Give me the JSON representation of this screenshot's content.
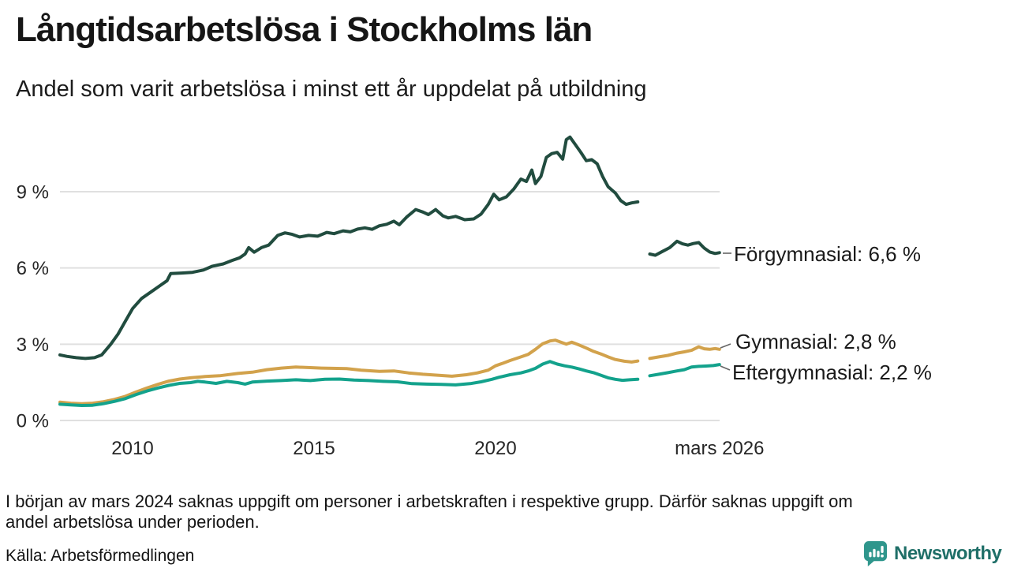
{
  "header": {
    "title": "Långtidsarbetslösa i Stockholms län",
    "subtitle": "Andel som varit arbetslösa i minst ett år uppdelat på utbildning"
  },
  "chart_data": {
    "type": "line",
    "title": "Långtidsarbetslösa i Stockholms län",
    "subtitle": "Andel som varit arbetslösa i minst ett år uppdelat på utbildning",
    "unit": "%",
    "grid": true,
    "legend_position": "end-labels-right",
    "x_axis": {
      "range": [
        2008,
        2026.25
      ],
      "ticks": [
        {
          "label": "2010",
          "year": 2010
        },
        {
          "label": "2015",
          "year": 2015
        },
        {
          "label": "2020",
          "year": 2020
        },
        {
          "label": "mars 2026",
          "year": 2026.17
        }
      ]
    },
    "y_axis": {
      "range": [
        0,
        11.5
      ],
      "ticks": [
        {
          "label": "0 %",
          "value": 0
        },
        {
          "label": "3 %",
          "value": 3
        },
        {
          "label": "6 %",
          "value": 6
        },
        {
          "label": "9 %",
          "value": 9
        }
      ]
    },
    "data_gap": {
      "from": 2023.92,
      "to": 2024.25
    },
    "series": [
      {
        "name": "Förgymnasial",
        "end_label": "Förgymnasial: 6,6 %",
        "latest_value": 6.6,
        "color": "#214c3f",
        "segments": [
          [
            [
              2008.0,
              2.58
            ],
            [
              2008.2,
              2.52
            ],
            [
              2008.45,
              2.47
            ],
            [
              2008.7,
              2.44
            ],
            [
              2008.95,
              2.47
            ],
            [
              2009.15,
              2.58
            ],
            [
              2009.4,
              3.0
            ],
            [
              2009.6,
              3.4
            ],
            [
              2009.8,
              3.9
            ],
            [
              2010.0,
              4.4
            ],
            [
              2010.25,
              4.8
            ],
            [
              2010.5,
              5.05
            ],
            [
              2010.75,
              5.3
            ],
            [
              2010.95,
              5.5
            ],
            [
              2011.05,
              5.78
            ],
            [
              2011.35,
              5.8
            ],
            [
              2011.65,
              5.83
            ],
            [
              2011.95,
              5.92
            ],
            [
              2012.2,
              6.07
            ],
            [
              2012.5,
              6.16
            ],
            [
              2012.75,
              6.3
            ],
            [
              2012.95,
              6.4
            ],
            [
              2013.1,
              6.55
            ],
            [
              2013.2,
              6.8
            ],
            [
              2013.35,
              6.62
            ],
            [
              2013.55,
              6.8
            ],
            [
              2013.75,
              6.9
            ],
            [
              2014.0,
              7.28
            ],
            [
              2014.2,
              7.38
            ],
            [
              2014.4,
              7.32
            ],
            [
              2014.6,
              7.22
            ],
            [
              2014.85,
              7.28
            ],
            [
              2015.1,
              7.25
            ],
            [
              2015.35,
              7.4
            ],
            [
              2015.55,
              7.35
            ],
            [
              2015.8,
              7.46
            ],
            [
              2016.0,
              7.42
            ],
            [
              2016.2,
              7.53
            ],
            [
              2016.4,
              7.58
            ],
            [
              2016.6,
              7.52
            ],
            [
              2016.8,
              7.66
            ],
            [
              2017.0,
              7.72
            ],
            [
              2017.2,
              7.84
            ],
            [
              2017.35,
              7.7
            ],
            [
              2017.55,
              8.0
            ],
            [
              2017.8,
              8.3
            ],
            [
              2018.0,
              8.2
            ],
            [
              2018.15,
              8.1
            ],
            [
              2018.35,
              8.3
            ],
            [
              2018.55,
              8.05
            ],
            [
              2018.7,
              7.97
            ],
            [
              2018.9,
              8.03
            ],
            [
              2019.15,
              7.9
            ],
            [
              2019.4,
              7.93
            ],
            [
              2019.6,
              8.12
            ],
            [
              2019.8,
              8.5
            ],
            [
              2019.95,
              8.9
            ],
            [
              2020.1,
              8.68
            ],
            [
              2020.3,
              8.8
            ],
            [
              2020.5,
              9.1
            ],
            [
              2020.7,
              9.5
            ],
            [
              2020.85,
              9.4
            ],
            [
              2021.0,
              9.85
            ],
            [
              2021.1,
              9.32
            ],
            [
              2021.25,
              9.6
            ],
            [
              2021.4,
              10.35
            ],
            [
              2021.55,
              10.5
            ],
            [
              2021.7,
              10.55
            ],
            [
              2021.85,
              10.28
            ],
            [
              2021.95,
              11.05
            ],
            [
              2022.05,
              11.15
            ],
            [
              2022.2,
              10.85
            ],
            [
              2022.35,
              10.55
            ],
            [
              2022.5,
              10.22
            ],
            [
              2022.65,
              10.26
            ],
            [
              2022.8,
              10.1
            ],
            [
              2022.95,
              9.6
            ],
            [
              2023.1,
              9.2
            ],
            [
              2023.3,
              8.95
            ],
            [
              2023.45,
              8.65
            ],
            [
              2023.6,
              8.5
            ],
            [
              2023.75,
              8.56
            ],
            [
              2023.92,
              8.6
            ]
          ],
          [
            [
              2024.25,
              6.55
            ],
            [
              2024.4,
              6.5
            ],
            [
              2024.6,
              6.65
            ],
            [
              2024.8,
              6.8
            ],
            [
              2025.0,
              7.05
            ],
            [
              2025.15,
              6.95
            ],
            [
              2025.3,
              6.9
            ],
            [
              2025.45,
              6.96
            ],
            [
              2025.6,
              7.0
            ],
            [
              2025.75,
              6.78
            ],
            [
              2025.9,
              6.63
            ],
            [
              2026.05,
              6.57
            ],
            [
              2026.17,
              6.6
            ]
          ]
        ]
      },
      {
        "name": "Gymnasial",
        "end_label": "Gymnasial: 2,8 %",
        "latest_value": 2.8,
        "color": "#d2a24c",
        "segments": [
          [
            [
              2008.0,
              0.72
            ],
            [
              2008.3,
              0.68
            ],
            [
              2008.6,
              0.66
            ],
            [
              2008.9,
              0.68
            ],
            [
              2009.2,
              0.74
            ],
            [
              2009.5,
              0.83
            ],
            [
              2009.8,
              0.95
            ],
            [
              2010.1,
              1.12
            ],
            [
              2010.4,
              1.28
            ],
            [
              2010.7,
              1.42
            ],
            [
              2011.0,
              1.55
            ],
            [
              2011.3,
              1.63
            ],
            [
              2011.6,
              1.68
            ],
            [
              2012.0,
              1.73
            ],
            [
              2012.4,
              1.76
            ],
            [
              2012.9,
              1.85
            ],
            [
              2013.3,
              1.9
            ],
            [
              2013.7,
              2.0
            ],
            [
              2014.1,
              2.06
            ],
            [
              2014.5,
              2.1
            ],
            [
              2014.9,
              2.08
            ],
            [
              2015.2,
              2.06
            ],
            [
              2015.5,
              2.05
            ],
            [
              2015.9,
              2.04
            ],
            [
              2016.3,
              1.98
            ],
            [
              2016.8,
              1.93
            ],
            [
              2017.2,
              1.95
            ],
            [
              2017.6,
              1.87
            ],
            [
              2018.0,
              1.82
            ],
            [
              2018.4,
              1.78
            ],
            [
              2018.8,
              1.74
            ],
            [
              2019.2,
              1.8
            ],
            [
              2019.5,
              1.87
            ],
            [
              2019.8,
              1.98
            ],
            [
              2020.0,
              2.15
            ],
            [
              2020.2,
              2.25
            ],
            [
              2020.4,
              2.36
            ],
            [
              2020.7,
              2.5
            ],
            [
              2020.9,
              2.6
            ],
            [
              2021.1,
              2.8
            ],
            [
              2021.3,
              3.02
            ],
            [
              2021.5,
              3.13
            ],
            [
              2021.65,
              3.16
            ],
            [
              2021.8,
              3.08
            ],
            [
              2021.95,
              3.0
            ],
            [
              2022.1,
              3.08
            ],
            [
              2022.3,
              2.97
            ],
            [
              2022.5,
              2.85
            ],
            [
              2022.7,
              2.72
            ],
            [
              2022.9,
              2.62
            ],
            [
              2023.1,
              2.5
            ],
            [
              2023.3,
              2.4
            ],
            [
              2023.55,
              2.33
            ],
            [
              2023.75,
              2.3
            ],
            [
              2023.92,
              2.34
            ]
          ],
          [
            [
              2024.25,
              2.44
            ],
            [
              2024.5,
              2.5
            ],
            [
              2024.75,
              2.56
            ],
            [
              2025.0,
              2.65
            ],
            [
              2025.2,
              2.7
            ],
            [
              2025.4,
              2.76
            ],
            [
              2025.6,
              2.9
            ],
            [
              2025.75,
              2.82
            ],
            [
              2025.9,
              2.8
            ],
            [
              2026.05,
              2.83
            ],
            [
              2026.17,
              2.8
            ]
          ]
        ]
      },
      {
        "name": "Eftergymnasial",
        "end_label": "Eftergymnasial: 2,2 %",
        "latest_value": 2.2,
        "color": "#13a28c",
        "segments": [
          [
            [
              2008.0,
              0.64
            ],
            [
              2008.3,
              0.61
            ],
            [
              2008.6,
              0.59
            ],
            [
              2008.9,
              0.6
            ],
            [
              2009.2,
              0.66
            ],
            [
              2009.5,
              0.75
            ],
            [
              2009.8,
              0.86
            ],
            [
              2010.1,
              1.02
            ],
            [
              2010.4,
              1.16
            ],
            [
              2010.7,
              1.28
            ],
            [
              2011.0,
              1.38
            ],
            [
              2011.3,
              1.46
            ],
            [
              2011.6,
              1.49
            ],
            [
              2011.8,
              1.54
            ],
            [
              2012.0,
              1.51
            ],
            [
              2012.3,
              1.46
            ],
            [
              2012.6,
              1.54
            ],
            [
              2012.9,
              1.49
            ],
            [
              2013.1,
              1.43
            ],
            [
              2013.3,
              1.51
            ],
            [
              2013.7,
              1.55
            ],
            [
              2014.1,
              1.57
            ],
            [
              2014.5,
              1.6
            ],
            [
              2014.9,
              1.57
            ],
            [
              2015.3,
              1.62
            ],
            [
              2015.7,
              1.63
            ],
            [
              2016.1,
              1.59
            ],
            [
              2016.5,
              1.57
            ],
            [
              2016.9,
              1.54
            ],
            [
              2017.3,
              1.52
            ],
            [
              2017.7,
              1.45
            ],
            [
              2018.1,
              1.43
            ],
            [
              2018.5,
              1.42
            ],
            [
              2018.9,
              1.4
            ],
            [
              2019.3,
              1.45
            ],
            [
              2019.6,
              1.52
            ],
            [
              2019.9,
              1.62
            ],
            [
              2020.1,
              1.7
            ],
            [
              2020.4,
              1.8
            ],
            [
              2020.7,
              1.87
            ],
            [
              2020.9,
              1.95
            ],
            [
              2021.1,
              2.05
            ],
            [
              2021.3,
              2.22
            ],
            [
              2021.5,
              2.32
            ],
            [
              2021.7,
              2.22
            ],
            [
              2021.9,
              2.15
            ],
            [
              2022.1,
              2.1
            ],
            [
              2022.3,
              2.03
            ],
            [
              2022.5,
              1.95
            ],
            [
              2022.7,
              1.88
            ],
            [
              2022.9,
              1.78
            ],
            [
              2023.1,
              1.68
            ],
            [
              2023.3,
              1.62
            ],
            [
              2023.5,
              1.58
            ],
            [
              2023.7,
              1.6
            ],
            [
              2023.92,
              1.62
            ]
          ],
          [
            [
              2024.25,
              1.76
            ],
            [
              2024.5,
              1.82
            ],
            [
              2024.75,
              1.88
            ],
            [
              2025.0,
              1.95
            ],
            [
              2025.2,
              2.0
            ],
            [
              2025.4,
              2.1
            ],
            [
              2025.6,
              2.13
            ],
            [
              2025.8,
              2.14
            ],
            [
              2026.0,
              2.16
            ],
            [
              2026.17,
              2.2
            ]
          ]
        ]
      }
    ]
  },
  "footnote": {
    "lines": [
      "I början av mars 2024 saknas uppgift om personer i arbetskraften i respektive grupp. Därför saknas uppgift om",
      "andel arbetslösa under perioden."
    ],
    "source": "Källa: Arbetsförmedlingen"
  },
  "branding": {
    "logo_text": "Newsworthy",
    "logo_color": "#2f968c",
    "wordmark_color": "#1f6f68"
  }
}
